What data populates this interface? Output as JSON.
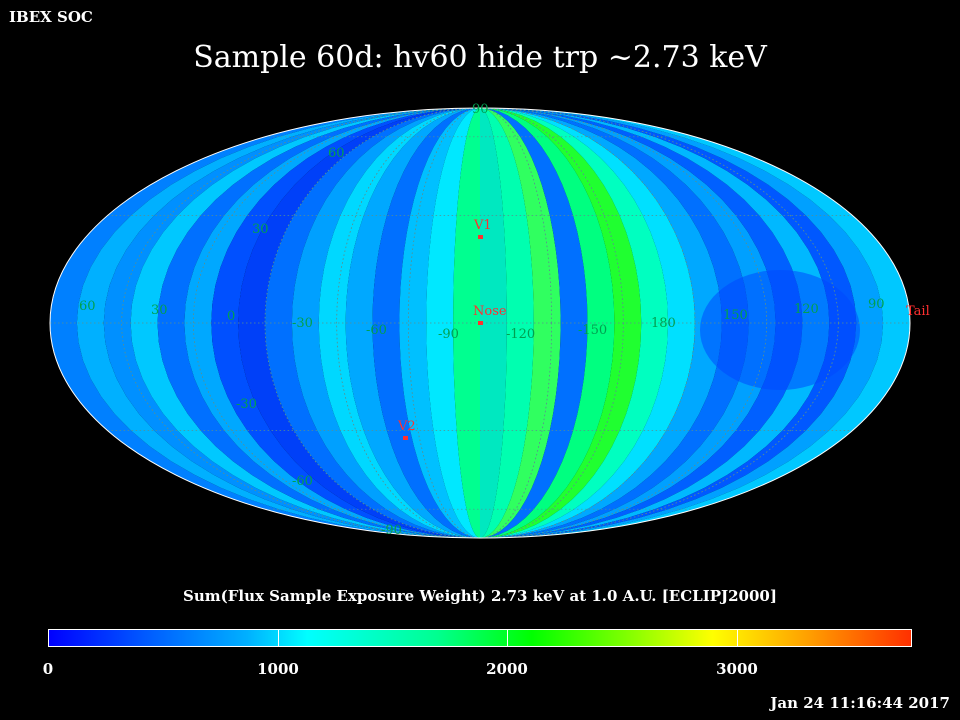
{
  "header": {
    "org": "IBEX SOC",
    "title": "Sample 60d: hv60 hide trp ~2.73 keV"
  },
  "map": {
    "projection": "Mollweide (Aitoff-like) all-sky",
    "lat_labels": [
      "60",
      "30",
      "-30",
      "-60",
      "-90",
      "90"
    ],
    "lon_labels": [
      "60",
      "30",
      "0",
      "-30",
      "-60",
      "-90",
      "-120",
      "-150",
      "180",
      "150",
      "120",
      "90"
    ],
    "markers": [
      {
        "label": "V1",
        "color": "#ff3030"
      },
      {
        "label": "Nose",
        "color": "#ff3030"
      },
      {
        "label": "V2",
        "color": "#ff3030"
      },
      {
        "label": "Tail",
        "color": "#ff3030"
      }
    ]
  },
  "colorbar": {
    "title": "Sum(Flux Sample Exposure Weight)  2.73 keV at 1.0 A.U. [ECLIPJ2000]",
    "min": 0,
    "max": 3800,
    "ticks": [
      "0",
      "1000",
      "2000",
      "3000"
    ],
    "tick_values": [
      0,
      1000,
      2000,
      3000
    ]
  },
  "timestamp": "Jan 24 11:16:44 2017",
  "colors": {
    "background": "#000000",
    "grid_label": "#00a050",
    "marker": "#ff3030"
  }
}
